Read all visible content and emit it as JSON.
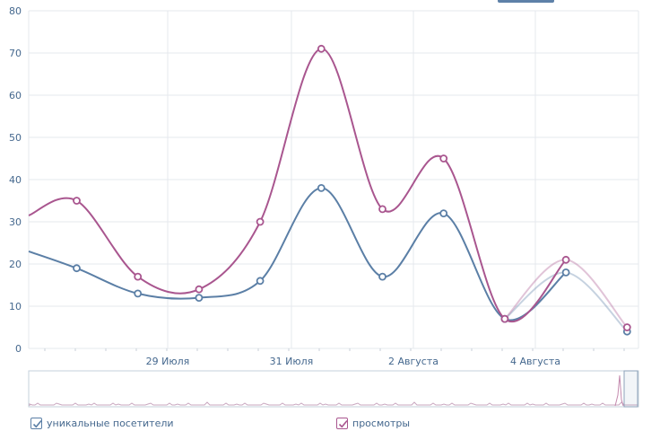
{
  "chart_data": {
    "type": "line",
    "yticks": [
      0,
      10,
      20,
      30,
      40,
      50,
      60,
      70,
      80
    ],
    "ylim": [
      0,
      80
    ],
    "xtick_labels": [
      "29 Июля",
      "31 Июля",
      "2 Августа",
      "4 Августа"
    ],
    "grid": true,
    "legend_placement": "bottom",
    "series": [
      {
        "name": "уникальные посетители",
        "color": "#5b7fa6",
        "points": [
          19,
          13,
          12,
          16,
          38,
          17,
          32,
          7,
          18,
          4
        ]
      },
      {
        "name": "просмотры",
        "color": "#a9568f",
        "points": [
          35,
          17,
          14,
          30,
          71,
          33,
          45,
          7,
          21,
          5
        ]
      }
    ],
    "left_edge_values": {
      "уникальные посетители": 23,
      "просмотры": 31.5
    }
  },
  "legend": {
    "visitors_label": "уникальные посетители",
    "views_label": "просмотры"
  },
  "colors": {
    "grid": "#e6e9ed",
    "axis_text": "#45688e",
    "navigator_border": "#c5d0db"
  }
}
